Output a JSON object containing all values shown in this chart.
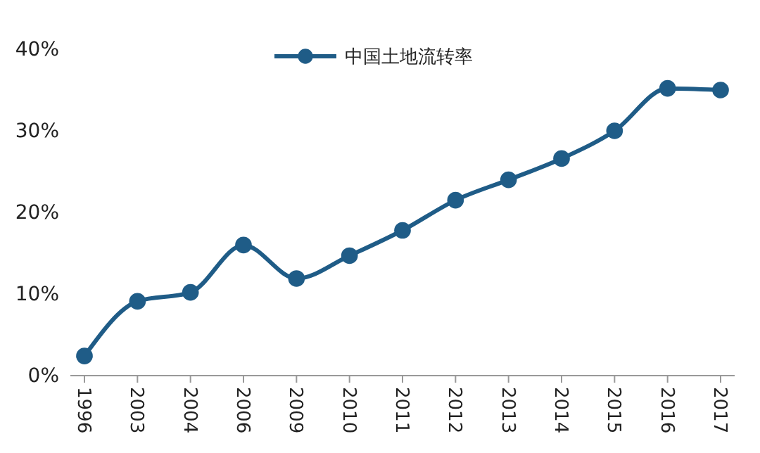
{
  "chart_data": {
    "type": "line",
    "categories": [
      "1996",
      "2003",
      "2004",
      "2006",
      "2009",
      "2010",
      "2011",
      "2012",
      "2013",
      "2014",
      "2015",
      "2016",
      "2017"
    ],
    "series": [
      {
        "name": "中国土地流转率",
        "color": "#1f5c87",
        "values": [
          2.4,
          9.1,
          10.2,
          16.0,
          11.9,
          14.7,
          17.8,
          21.5,
          24.0,
          26.6,
          30.0,
          35.2,
          35.0
        ]
      }
    ],
    "ylim": [
      0,
      40
    ],
    "yticks": [
      {
        "value": 0,
        "label": "0%"
      },
      {
        "value": 10,
        "label": "10%"
      },
      {
        "value": 20,
        "label": "20%"
      },
      {
        "value": 30,
        "label": "30%"
      },
      {
        "value": 40,
        "label": "40%"
      }
    ],
    "grid": false,
    "legend": "top",
    "marker": "circle",
    "line_style": "solid"
  }
}
